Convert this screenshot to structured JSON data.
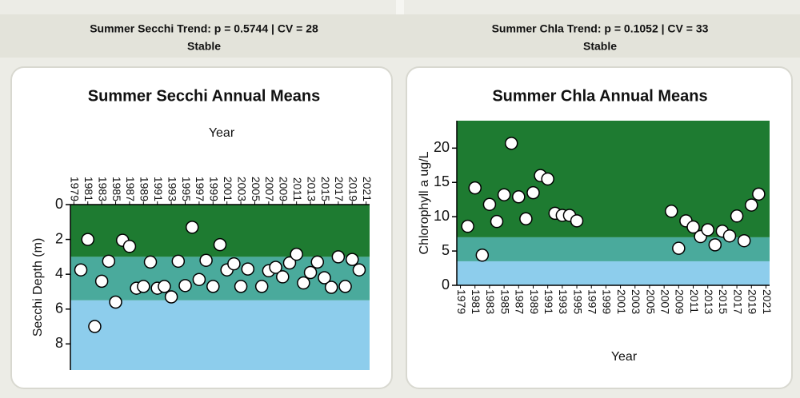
{
  "headers": [
    {
      "trend": "Summer Secchi Trend: p = 0.5744 | CV = 28",
      "status": "Stable"
    },
    {
      "trend": "Summer Chla Trend: p = 0.1052 | CV = 33",
      "status": "Stable"
    }
  ],
  "chart_data": [
    {
      "type": "scatter",
      "title": "Summer Secchi Annual Means",
      "x_label": "Year",
      "y_label": "Secchi Depth (m)",
      "x_axis_position": "top",
      "xlim": [
        1978.5,
        2021.5
      ],
      "xticks": [
        1979,
        1981,
        1983,
        1985,
        1987,
        1989,
        1991,
        1993,
        1995,
        1997,
        1999,
        2001,
        2003,
        2005,
        2007,
        2009,
        2011,
        2013,
        2015,
        2017,
        2019,
        2021
      ],
      "ylim": [
        9.5,
        0
      ],
      "yticks": [
        0,
        2,
        4,
        6,
        8
      ],
      "bands": [
        {
          "from": 0,
          "to": 3,
          "color": "#1e7b31"
        },
        {
          "from": 3,
          "to": 5.5,
          "color": "#4aaa9c"
        },
        {
          "from": 5.5,
          "to": 9.5,
          "color": "#8dcdec"
        }
      ],
      "color": "#ffffff",
      "x": [
        1980,
        1981,
        1982,
        1983,
        1984,
        1985,
        1986,
        1987,
        1988,
        1989,
        1990,
        1991,
        1992,
        1993,
        1994,
        1995,
        1996,
        1997,
        1998,
        1999,
        2000,
        2001,
        2002,
        2003,
        2004,
        2006,
        2007,
        2008,
        2009,
        2010,
        2011,
        2012,
        2013,
        2014,
        2015,
        2016,
        2017,
        2018,
        2019,
        2020
      ],
      "values": [
        3.75,
        2.0,
        7.0,
        4.4,
        3.25,
        5.6,
        2.05,
        2.4,
        4.8,
        4.7,
        3.3,
        4.8,
        4.7,
        5.3,
        3.25,
        4.65,
        1.3,
        4.3,
        3.2,
        4.7,
        2.3,
        3.75,
        3.4,
        4.7,
        3.7,
        4.7,
        3.8,
        3.6,
        4.15,
        3.35,
        2.85,
        4.5,
        3.9,
        3.3,
        4.2,
        4.75,
        3.0,
        4.7,
        3.15,
        3.75
      ]
    },
    {
      "type": "scatter",
      "title": "Summer Chla Annual Means",
      "x_label": "Year",
      "y_label": "Chlorophyll a ug/L",
      "x_axis_position": "bottom",
      "xlim": [
        1978.5,
        2021.5
      ],
      "xticks": [
        1979,
        1981,
        1983,
        1985,
        1987,
        1989,
        1991,
        1993,
        1995,
        1997,
        1999,
        2001,
        2003,
        2005,
        2007,
        2009,
        2011,
        2013,
        2015,
        2017,
        2019,
        2021
      ],
      "ylim": [
        0,
        24
      ],
      "yticks": [
        0,
        5,
        10,
        15,
        20
      ],
      "bands": [
        {
          "from": 7,
          "to": 24,
          "color": "#1e7b31"
        },
        {
          "from": 3.5,
          "to": 7,
          "color": "#4aaa9c"
        },
        {
          "from": 0,
          "to": 3.5,
          "color": "#8dcdec"
        }
      ],
      "color": "#ffffff",
      "x": [
        1980,
        1981,
        1982,
        1983,
        1984,
        1985,
        1986,
        1987,
        1988,
        1989,
        1990,
        1991,
        1992,
        1993,
        1994,
        1995,
        2008,
        2009,
        2010,
        2011,
        2012,
        2013,
        2014,
        2015,
        2016,
        2017,
        2018,
        2019,
        2020
      ],
      "values": [
        8.6,
        14.2,
        4.4,
        11.8,
        9.3,
        13.2,
        20.7,
        12.9,
        9.7,
        13.5,
        16.0,
        15.5,
        10.5,
        10.2,
        10.2,
        9.4,
        10.8,
        5.4,
        9.4,
        8.5,
        7.1,
        8.1,
        5.9,
        7.9,
        7.2,
        10.1,
        6.5,
        11.7,
        13.3
      ]
    }
  ]
}
